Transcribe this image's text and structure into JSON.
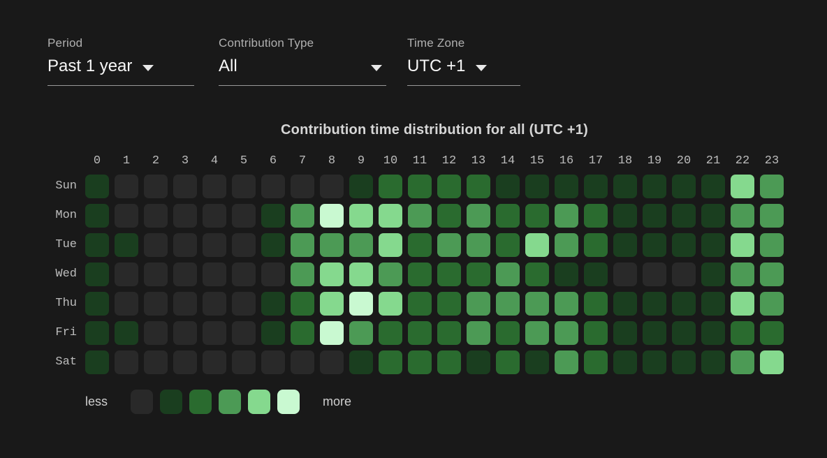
{
  "filters": [
    {
      "id": "period",
      "label": "Period",
      "value": "Past 1 year"
    },
    {
      "id": "contribution-type",
      "label": "Contribution Type",
      "value": "All"
    },
    {
      "id": "time-zone",
      "label": "Time Zone",
      "value": "UTC +1"
    }
  ],
  "colors": {
    "background": "#191919",
    "label_gray": "#bdbdbd",
    "value_white": "#f7f7f7",
    "underline": "#9a9a9a"
  },
  "chart_data": {
    "type": "heatmap",
    "title": "Contribution time distribution for all (UTC +1)",
    "x_labels": [
      "0",
      "1",
      "2",
      "3",
      "4",
      "5",
      "6",
      "7",
      "8",
      "9",
      "10",
      "11",
      "12",
      "13",
      "14",
      "15",
      "16",
      "17",
      "18",
      "19",
      "20",
      "21",
      "22",
      "23"
    ],
    "y_labels": [
      "Sun",
      "Mon",
      "Tue",
      "Wed",
      "Thu",
      "Fri",
      "Sat"
    ],
    "intensity_colors": [
      "#292929",
      "#1a3e1f",
      "#2a6b2f",
      "#4c9a55",
      "#85d98e",
      "#c9f9d1"
    ],
    "intensity_scale_note": "0 = least contributions, 5 = most contributions",
    "values": [
      [
        1,
        0,
        0,
        0,
        0,
        0,
        0,
        0,
        0,
        1,
        2,
        2,
        2,
        2,
        1,
        1,
        1,
        1,
        1,
        1,
        1,
        1,
        4,
        3
      ],
      [
        1,
        0,
        0,
        0,
        0,
        0,
        1,
        3,
        5,
        4,
        4,
        3,
        2,
        3,
        2,
        2,
        3,
        2,
        1,
        1,
        1,
        1,
        3,
        3
      ],
      [
        1,
        1,
        0,
        0,
        0,
        0,
        1,
        3,
        3,
        3,
        4,
        2,
        3,
        3,
        2,
        4,
        3,
        2,
        1,
        1,
        1,
        1,
        4,
        3
      ],
      [
        1,
        0,
        0,
        0,
        0,
        0,
        0,
        3,
        4,
        4,
        3,
        2,
        2,
        2,
        3,
        2,
        1,
        1,
        0,
        0,
        0,
        1,
        3,
        3
      ],
      [
        1,
        0,
        0,
        0,
        0,
        0,
        1,
        2,
        4,
        5,
        4,
        2,
        2,
        3,
        3,
        3,
        3,
        2,
        1,
        1,
        1,
        1,
        4,
        3
      ],
      [
        1,
        1,
        0,
        0,
        0,
        0,
        1,
        2,
        5,
        3,
        2,
        2,
        2,
        3,
        2,
        3,
        3,
        2,
        1,
        1,
        1,
        1,
        2,
        2
      ],
      [
        1,
        0,
        0,
        0,
        0,
        0,
        0,
        0,
        0,
        1,
        2,
        2,
        2,
        1,
        2,
        1,
        3,
        2,
        1,
        1,
        1,
        1,
        3,
        4
      ]
    ],
    "legend": {
      "less_label": "less",
      "more_label": "more",
      "levels": [
        0,
        1,
        2,
        3,
        4,
        5
      ],
      "position": "bottom-left"
    }
  }
}
